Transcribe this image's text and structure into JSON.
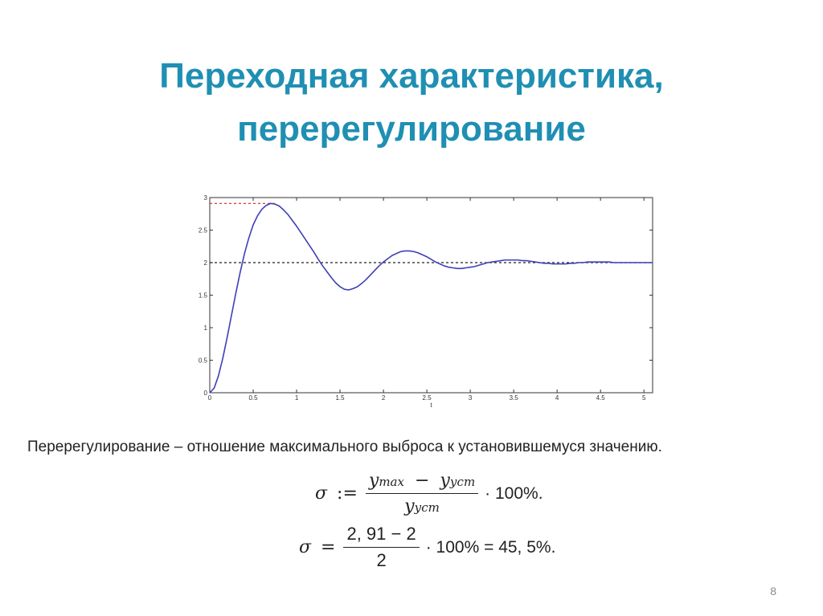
{
  "slide": {
    "title_line1": "Переходная характеристика,",
    "title_line2": "перерегулирование",
    "definition": "Перерегулирование – отношение максимального выброса к установившемуся значению.",
    "page_number": "8",
    "title_color": "#1f8fb3"
  },
  "formula1": {
    "sigma": "σ",
    "assign": ":=",
    "numerator_y": "y",
    "numerator_sub": "max",
    "minus": "−",
    "numerator_yust": "y",
    "numerator_yust_sub": "уст",
    "denominator_y": "y",
    "denominator_sub": "уст",
    "tail": "· 100%."
  },
  "formula2": {
    "sigma": "σ",
    "equals": "=",
    "numerator": "2, 91 − 2",
    "denominator": "2",
    "tail": "· 100% = 45, 5%."
  },
  "chart_data": {
    "type": "line",
    "title": "",
    "xlabel": "t",
    "ylabel": "",
    "xlim": [
      0,
      5.1
    ],
    "ylim": [
      0,
      3
    ],
    "xticks": [
      "0",
      "0.5",
      "1",
      "1.5",
      "2",
      "2.5",
      "3",
      "3.5",
      "4",
      "4.5",
      "5"
    ],
    "yticks": [
      "0",
      "0.5",
      "1",
      "1.5",
      "2",
      "2.5",
      "3"
    ],
    "grid": false,
    "line_color": "#3f3fb8",
    "steady_state_color": "#222222",
    "peak_marker_color": "#d62020",
    "series": [
      {
        "x": [
          0,
          0.05,
          0.1,
          0.15,
          0.2,
          0.25,
          0.3,
          0.35,
          0.4,
          0.45,
          0.5,
          0.55,
          0.6,
          0.65,
          0.7,
          0.75,
          0.8,
          0.85,
          0.9,
          0.95,
          1.0,
          1.05,
          1.1,
          1.15,
          1.2,
          1.25,
          1.3,
          1.35,
          1.4,
          1.45,
          1.5,
          1.55,
          1.6,
          1.65,
          1.7,
          1.75,
          1.8,
          1.85,
          1.9,
          1.95,
          2.0,
          2.05,
          2.1,
          2.15,
          2.2,
          2.25,
          2.3,
          2.35,
          2.4,
          2.45,
          2.5,
          2.55,
          2.6,
          2.65,
          2.7,
          2.75,
          2.8,
          2.85,
          2.9,
          2.95,
          3.0,
          3.05,
          3.1,
          3.15,
          3.2,
          3.25,
          3.3,
          3.35,
          3.4,
          3.45,
          3.5,
          3.55,
          3.6,
          3.65,
          3.7,
          3.75,
          3.8,
          3.85,
          3.9,
          3.95,
          4.0,
          4.05,
          4.1,
          4.15,
          4.2,
          4.25,
          4.3,
          4.35,
          4.4,
          4.45,
          4.5,
          4.55,
          4.6,
          4.65,
          4.7,
          4.75,
          4.8,
          4.85,
          4.9,
          4.95,
          5.0,
          5.05,
          5.1
        ],
        "y": [
          0,
          0.07,
          0.26,
          0.53,
          0.85,
          1.19,
          1.53,
          1.85,
          2.14,
          2.38,
          2.58,
          2.72,
          2.82,
          2.88,
          2.91,
          2.9,
          2.87,
          2.81,
          2.74,
          2.65,
          2.56,
          2.46,
          2.36,
          2.26,
          2.16,
          2.05,
          1.95,
          1.86,
          1.77,
          1.69,
          1.63,
          1.59,
          1.58,
          1.6,
          1.63,
          1.68,
          1.74,
          1.81,
          1.88,
          1.95,
          2.01,
          2.06,
          2.11,
          2.14,
          2.17,
          2.18,
          2.18,
          2.17,
          2.15,
          2.12,
          2.09,
          2.05,
          2.01,
          1.98,
          1.95,
          1.93,
          1.92,
          1.91,
          1.91,
          1.92,
          1.93,
          1.94,
          1.96,
          1.98,
          2.0,
          2.01,
          2.02,
          2.03,
          2.04,
          2.04,
          2.04,
          2.04,
          2.03,
          2.03,
          2.02,
          2.01,
          2.0,
          1.99,
          1.99,
          1.98,
          1.98,
          1.98,
          1.98,
          1.99,
          1.99,
          2.0,
          2.0,
          2.01,
          2.01,
          2.01,
          2.01,
          2.01,
          2.01,
          2.0,
          2.0,
          2.0,
          2.0,
          2.0,
          2.0,
          2.0,
          2.0,
          2.0,
          2.0
        ]
      }
    ],
    "steady_state": 2,
    "peak": {
      "x": 0.75,
      "y": 2.91
    }
  }
}
